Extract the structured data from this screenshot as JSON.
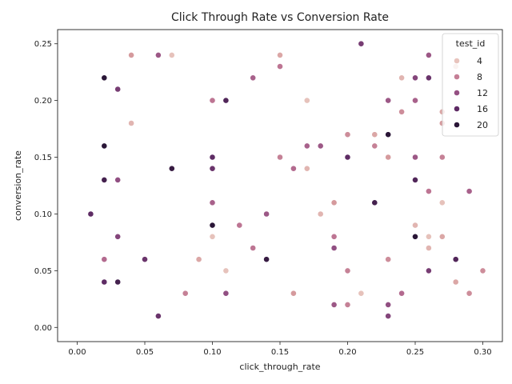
{
  "chart_data": {
    "type": "scatter",
    "title": "Click Through Rate vs Conversion Rate",
    "xlabel": "click_through_rate",
    "ylabel": "conversion_rate",
    "xlim": [
      -0.0145,
      0.3145
    ],
    "ylim": [
      -0.0125,
      0.2625
    ],
    "xticks": [
      "0.00",
      "0.05",
      "0.10",
      "0.15",
      "0.20",
      "0.25",
      "0.30"
    ],
    "yticks": [
      "0.00",
      "0.05",
      "0.10",
      "0.15",
      "0.20",
      "0.25"
    ],
    "grid": false,
    "legend": {
      "title": "test_id",
      "placement": "top-right",
      "entries": [
        {
          "label": "4",
          "color": "#e8c4bd"
        },
        {
          "label": "8",
          "color": "#c57f96"
        },
        {
          "label": "12",
          "color": "#955083"
        },
        {
          "label": "16",
          "color": "#5e2a64"
        },
        {
          "label": "20",
          "color": "#2a1637"
        }
      ]
    },
    "color_scale": {
      "min": 2,
      "max": 21,
      "stops": [
        "#ecd0c6",
        "#d79c9e",
        "#b86e91",
        "#8c4b80",
        "#5b2a62",
        "#2a1637"
      ]
    },
    "points": [
      [
        0.04,
        0.24,
        6
      ],
      [
        0.06,
        0.24,
        12
      ],
      [
        0.07,
        0.24,
        3
      ],
      [
        0.15,
        0.24,
        5
      ],
      [
        0.21,
        0.25,
        15
      ],
      [
        0.26,
        0.24,
        12
      ],
      [
        0.02,
        0.22,
        21
      ],
      [
        0.13,
        0.22,
        11
      ],
      [
        0.15,
        0.23,
        9
      ],
      [
        0.24,
        0.22,
        4
      ],
      [
        0.25,
        0.22,
        14
      ],
      [
        0.26,
        0.22,
        16
      ],
      [
        0.28,
        0.23,
        3
      ],
      [
        0.03,
        0.21,
        15
      ],
      [
        0.1,
        0.2,
        9
      ],
      [
        0.11,
        0.2,
        18
      ],
      [
        0.17,
        0.2,
        3
      ],
      [
        0.23,
        0.2,
        12
      ],
      [
        0.25,
        0.2,
        11
      ],
      [
        0.24,
        0.19,
        7
      ],
      [
        0.27,
        0.19,
        5
      ],
      [
        0.04,
        0.18,
        4
      ],
      [
        0.27,
        0.18,
        6
      ],
      [
        0.02,
        0.16,
        21
      ],
      [
        0.17,
        0.16,
        11
      ],
      [
        0.18,
        0.16,
        12
      ],
      [
        0.2,
        0.17,
        7
      ],
      [
        0.22,
        0.17,
        5
      ],
      [
        0.22,
        0.16,
        8
      ],
      [
        0.23,
        0.17,
        21
      ],
      [
        0.07,
        0.14,
        20
      ],
      [
        0.1,
        0.15,
        17
      ],
      [
        0.1,
        0.14,
        16
      ],
      [
        0.15,
        0.15,
        8
      ],
      [
        0.16,
        0.14,
        10
      ],
      [
        0.17,
        0.14,
        4
      ],
      [
        0.2,
        0.15,
        17
      ],
      [
        0.23,
        0.15,
        6
      ],
      [
        0.25,
        0.15,
        12
      ],
      [
        0.27,
        0.15,
        8
      ],
      [
        0.02,
        0.13,
        19
      ],
      [
        0.03,
        0.13,
        13
      ],
      [
        0.25,
        0.13,
        18
      ],
      [
        0.26,
        0.12,
        9
      ],
      [
        0.29,
        0.12,
        11
      ],
      [
        0.01,
        0.1,
        17
      ],
      [
        0.1,
        0.11,
        11
      ],
      [
        0.14,
        0.1,
        12
      ],
      [
        0.18,
        0.1,
        4
      ],
      [
        0.19,
        0.11,
        6
      ],
      [
        0.22,
        0.11,
        19
      ],
      [
        0.27,
        0.11,
        3
      ],
      [
        0.1,
        0.09,
        21
      ],
      [
        0.1,
        0.08,
        3
      ],
      [
        0.12,
        0.09,
        9
      ],
      [
        0.25,
        0.09,
        4
      ],
      [
        0.03,
        0.08,
        14
      ],
      [
        0.19,
        0.08,
        9
      ],
      [
        0.25,
        0.08,
        21
      ],
      [
        0.26,
        0.08,
        3
      ],
      [
        0.27,
        0.08,
        5
      ],
      [
        0.02,
        0.06,
        10
      ],
      [
        0.05,
        0.06,
        16
      ],
      [
        0.09,
        0.06,
        5
      ],
      [
        0.13,
        0.07,
        9
      ],
      [
        0.14,
        0.06,
        20
      ],
      [
        0.19,
        0.07,
        13
      ],
      [
        0.23,
        0.06,
        7
      ],
      [
        0.26,
        0.07,
        4
      ],
      [
        0.28,
        0.06,
        18
      ],
      [
        0.02,
        0.04,
        17
      ],
      [
        0.03,
        0.04,
        19
      ],
      [
        0.11,
        0.05,
        3
      ],
      [
        0.2,
        0.05,
        8
      ],
      [
        0.26,
        0.05,
        15
      ],
      [
        0.28,
        0.04,
        5
      ],
      [
        0.3,
        0.05,
        7
      ],
      [
        0.08,
        0.03,
        8
      ],
      [
        0.11,
        0.03,
        13
      ],
      [
        0.16,
        0.03,
        6
      ],
      [
        0.21,
        0.03,
        3
      ],
      [
        0.24,
        0.03,
        10
      ],
      [
        0.29,
        0.03,
        7
      ],
      [
        0.19,
        0.02,
        12
      ],
      [
        0.2,
        0.02,
        8
      ],
      [
        0.23,
        0.02,
        13
      ],
      [
        0.06,
        0.01,
        16
      ],
      [
        0.23,
        0.01,
        14
      ]
    ]
  }
}
